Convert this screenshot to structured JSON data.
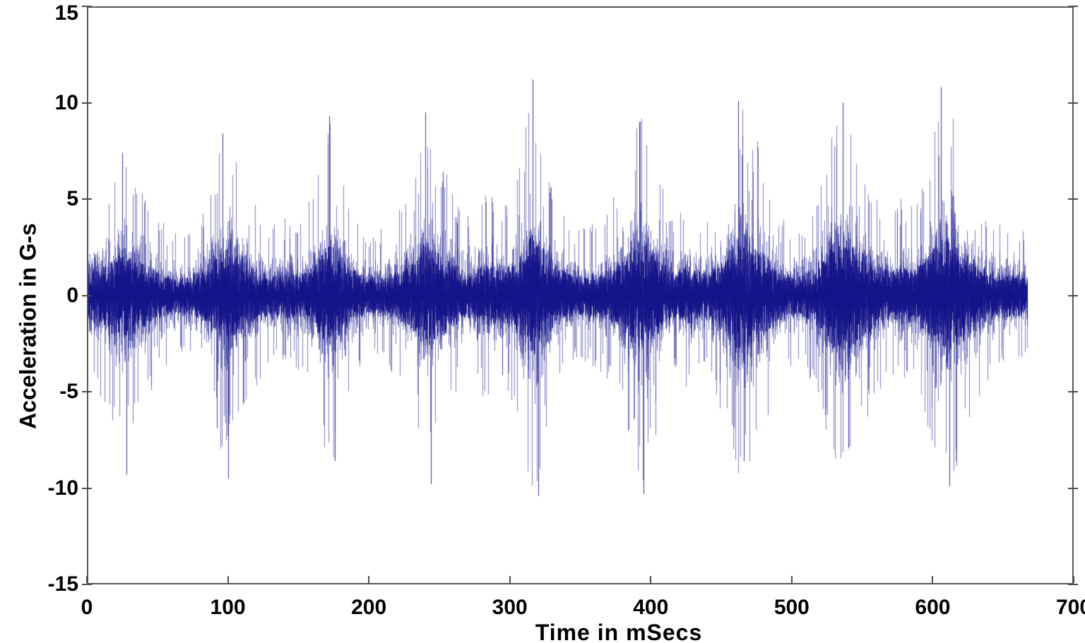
{
  "chart_data": {
    "type": "line",
    "title": "",
    "xlabel": "Time in mSecs",
    "ylabel": "Acceleration in G-s",
    "xlim": [
      0,
      700
    ],
    "ylim": [
      -15,
      15
    ],
    "x_ticks": [
      0,
      100,
      200,
      300,
      400,
      500,
      600,
      700
    ],
    "y_ticks": [
      15,
      10,
      5,
      0,
      -5,
      -10,
      -15
    ],
    "grid": false,
    "legend": "none",
    "series": [
      {
        "name": "acceleration-waveform",
        "color": "#14148a",
        "t_start_ms": 0,
        "t_end_ms": 667,
        "description": "Dense random vibration time history with quasi-periodic amplitude bursts roughly every 70-75 ms; solid core band about +/-2 G",
        "envelope_t_ms_amp_g": [
          [
            0,
            4.2
          ],
          [
            8,
            5.2
          ],
          [
            15,
            6.3
          ],
          [
            22,
            7.3
          ],
          [
            28,
            7.5
          ],
          [
            35,
            6.2
          ],
          [
            42,
            5.4
          ],
          [
            50,
            4.4
          ],
          [
            58,
            3.4
          ],
          [
            66,
            3.1
          ],
          [
            74,
            3.5
          ],
          [
            82,
            4.6
          ],
          [
            90,
            6.5
          ],
          [
            96,
            8.4
          ],
          [
            101,
            8.0
          ],
          [
            107,
            7.4
          ],
          [
            113,
            6.6
          ],
          [
            120,
            4.8
          ],
          [
            128,
            3.6
          ],
          [
            136,
            3.9
          ],
          [
            144,
            4.1
          ],
          [
            152,
            3.8
          ],
          [
            160,
            5.4
          ],
          [
            167,
            7.5
          ],
          [
            172,
            9.3
          ],
          [
            177,
            7.8
          ],
          [
            184,
            5.6
          ],
          [
            192,
            4.0
          ],
          [
            200,
            3.4
          ],
          [
            208,
            3.5
          ],
          [
            216,
            4.0
          ],
          [
            224,
            4.7
          ],
          [
            232,
            6.0
          ],
          [
            240,
            9.5
          ],
          [
            246,
            7.8
          ],
          [
            252,
            7.0
          ],
          [
            260,
            5.4
          ],
          [
            268,
            4.0
          ],
          [
            276,
            4.6
          ],
          [
            284,
            5.7
          ],
          [
            292,
            4.6
          ],
          [
            300,
            5.3
          ],
          [
            307,
            7.0
          ],
          [
            313,
            9.8
          ],
          [
            316,
            11.2
          ],
          [
            320,
            9.6
          ],
          [
            326,
            7.2
          ],
          [
            334,
            5.0
          ],
          [
            342,
            3.8
          ],
          [
            350,
            3.4
          ],
          [
            358,
            3.8
          ],
          [
            366,
            4.2
          ],
          [
            374,
            5.2
          ],
          [
            382,
            7.0
          ],
          [
            389,
            9.0
          ],
          [
            395,
            10.3
          ],
          [
            402,
            7.8
          ],
          [
            409,
            5.6
          ],
          [
            417,
            4.1
          ],
          [
            424,
            5.2
          ],
          [
            431,
            4.7
          ],
          [
            439,
            4.2
          ],
          [
            448,
            5.6
          ],
          [
            456,
            8.2
          ],
          [
            462,
            10.1
          ],
          [
            468,
            9.5
          ],
          [
            475,
            8.3
          ],
          [
            482,
            6.5
          ],
          [
            490,
            4.8
          ],
          [
            498,
            3.9
          ],
          [
            506,
            3.6
          ],
          [
            514,
            4.5
          ],
          [
            522,
            6.6
          ],
          [
            529,
            9.2
          ],
          [
            536,
            10.0
          ],
          [
            543,
            9.0
          ],
          [
            550,
            7.6
          ],
          [
            557,
            6.0
          ],
          [
            564,
            4.9
          ],
          [
            572,
            4.4
          ],
          [
            579,
            5.3
          ],
          [
            586,
            4.8
          ],
          [
            593,
            6.0
          ],
          [
            600,
            7.9
          ],
          [
            606,
            10.8
          ],
          [
            612,
            9.8
          ],
          [
            619,
            8.6
          ],
          [
            626,
            7.0
          ],
          [
            634,
            5.2
          ],
          [
            642,
            4.2
          ],
          [
            650,
            3.7
          ],
          [
            658,
            4.0
          ],
          [
            667,
            3.4
          ]
        ],
        "notable_peaks_t_ms_amp_g": [
          [
            25,
            7.4
          ],
          [
            28,
            -9.3
          ],
          [
            96,
            8.4
          ],
          [
            100,
            -9.5
          ],
          [
            172,
            9.3
          ],
          [
            176,
            -8.6
          ],
          [
            240,
            9.5
          ],
          [
            244,
            -9.8
          ],
          [
            316,
            11.2
          ],
          [
            320,
            -10.4
          ],
          [
            392,
            9.0
          ],
          [
            395,
            -10.3
          ],
          [
            462,
            10.1
          ],
          [
            466,
            -8.6
          ],
          [
            536,
            10.0
          ],
          [
            540,
            -7.9
          ],
          [
            606,
            10.8
          ],
          [
            612,
            -9.9
          ]
        ],
        "noise_seed": 1337
      }
    ]
  },
  "appearance": {
    "background": "#ffffff",
    "frame_color": "#565656",
    "tick_color": "#4c4c4c",
    "text_color": "#000000"
  }
}
